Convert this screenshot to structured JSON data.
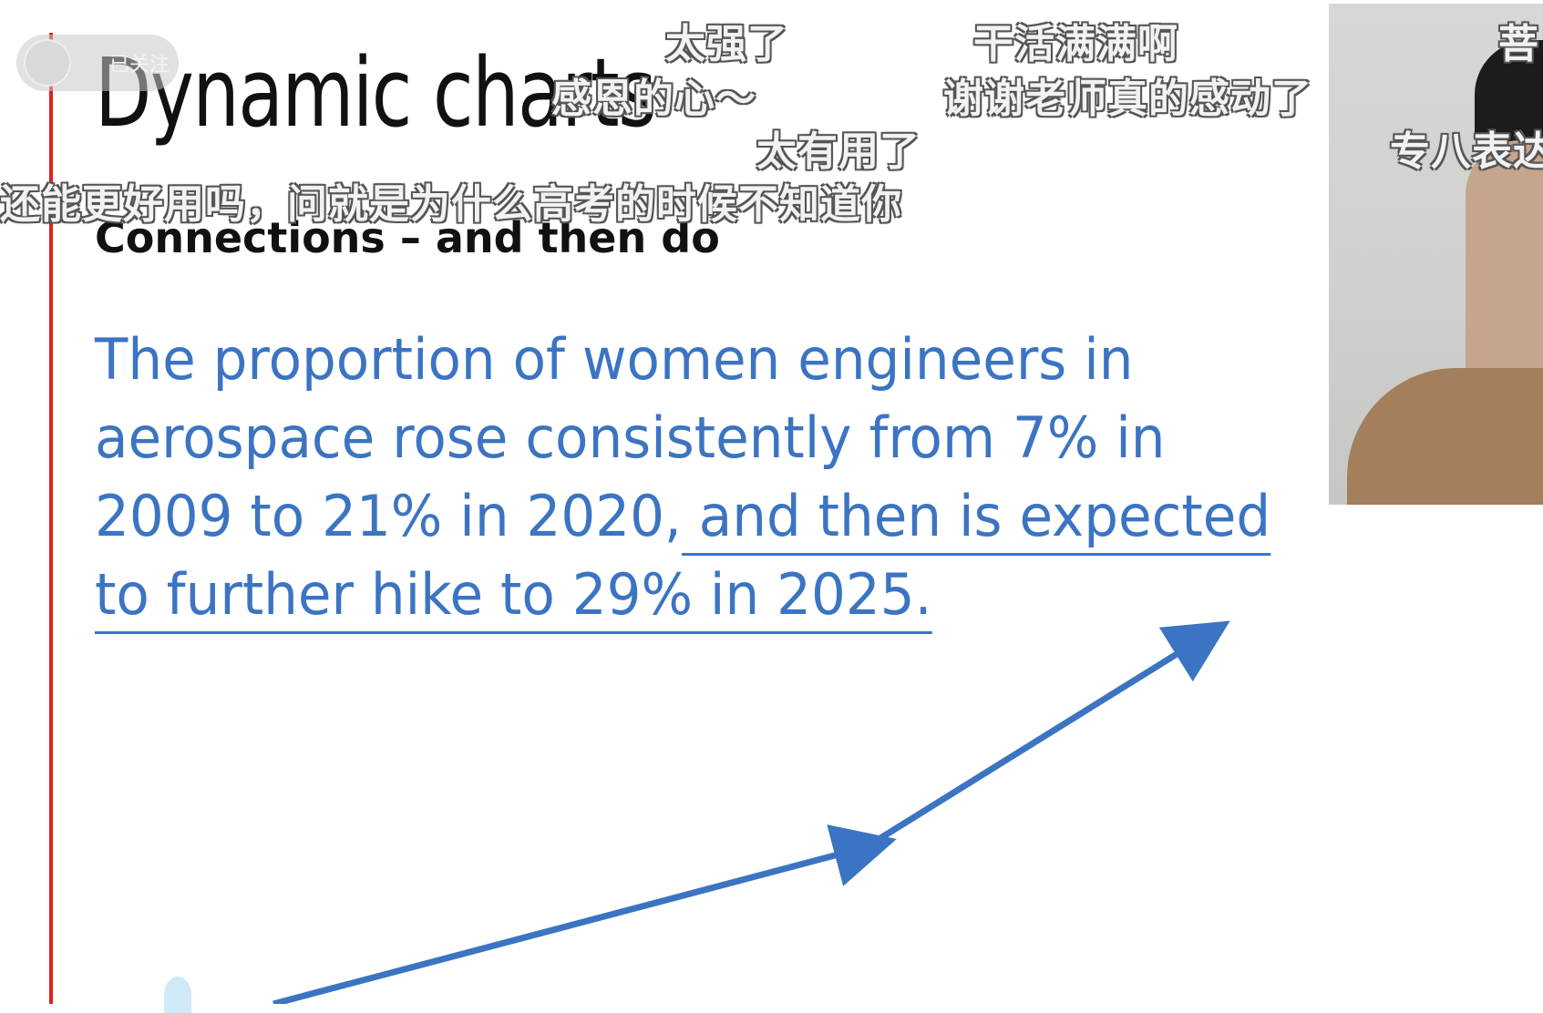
{
  "slide": {
    "title": "Dynamic charts",
    "subtitle": "Connections – and then do",
    "sentence_lines": [
      "The proportion of women engineers in",
      "aerospace rose consistently from 7% in",
      "2009 to 21% in 2020,",
      " and then is expected",
      "to further hike to 29% in 2025."
    ],
    "accent_color": "#3b74c2",
    "rule_color": "#e02020"
  },
  "overlay": {
    "follow_label": "已关注",
    "danmaku": [
      "太强了",
      "干活满满啊",
      "菩",
      "感恩的心～",
      "谢谢老师真的感动了",
      "太有用了",
      "专八表达",
      "还能更好用吗，问就是为什么高考的时候不知道你"
    ]
  }
}
